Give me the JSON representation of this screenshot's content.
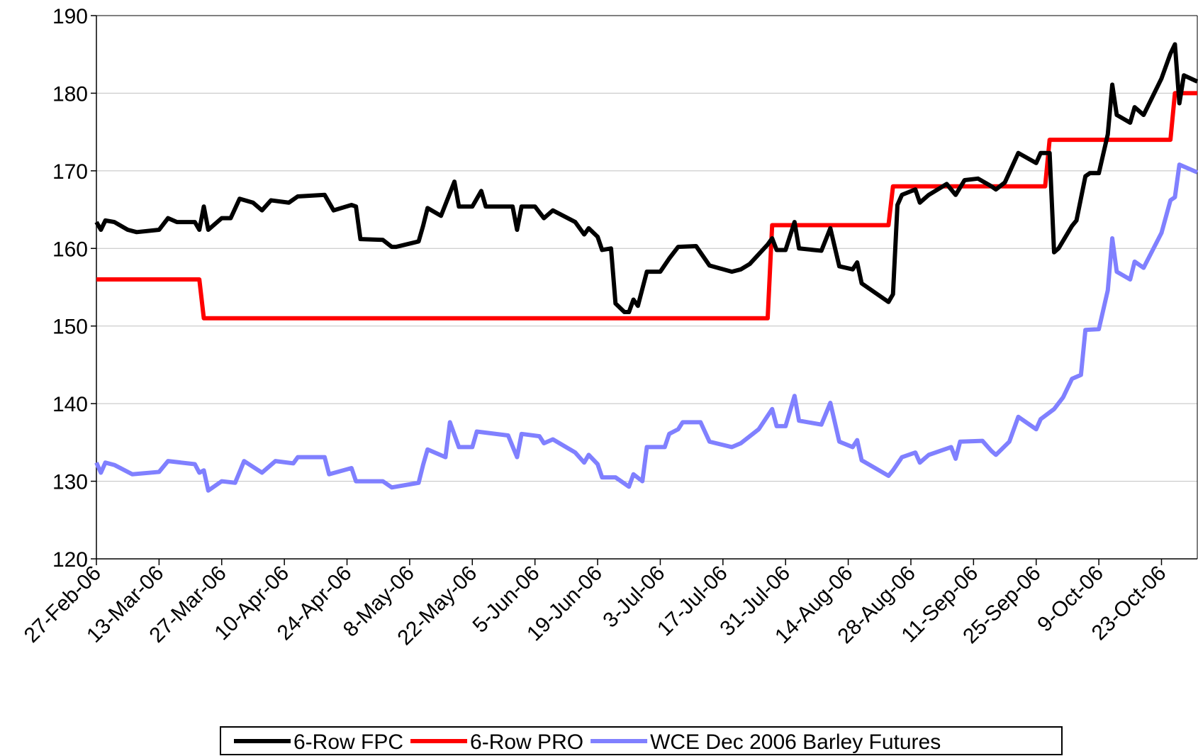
{
  "chart_data": {
    "type": "line",
    "xlim": [
      "2006-02-27",
      "2006-10-31"
    ],
    "xticks": [
      {
        "value": "2006-02-27",
        "label": "27-Feb-06"
      },
      {
        "value": "2006-03-13",
        "label": "13-Mar-06"
      },
      {
        "value": "2006-03-27",
        "label": "27-Mar-06"
      },
      {
        "value": "2006-04-10",
        "label": "10-Apr-06"
      },
      {
        "value": "2006-04-24",
        "label": "24-Apr-06"
      },
      {
        "value": "2006-05-08",
        "label": "8-May-06"
      },
      {
        "value": "2006-05-22",
        "label": "22-May-06"
      },
      {
        "value": "2006-06-05",
        "label": "5-Jun-06"
      },
      {
        "value": "2006-06-19",
        "label": "19-Jun-06"
      },
      {
        "value": "2006-07-03",
        "label": "3-Jul-06"
      },
      {
        "value": "2006-07-17",
        "label": "17-Jul-06"
      },
      {
        "value": "2006-07-31",
        "label": "31-Jul-06"
      },
      {
        "value": "2006-08-14",
        "label": "14-Aug-06"
      },
      {
        "value": "2006-08-28",
        "label": "28-Aug-06"
      },
      {
        "value": "2006-09-11",
        "label": "11-Sep-06"
      },
      {
        "value": "2006-09-25",
        "label": "25-Sep-06"
      },
      {
        "value": "2006-10-09",
        "label": "9-Oct-06"
      },
      {
        "value": "2006-10-23",
        "label": "23-Oct-06"
      }
    ],
    "ylim": [
      120,
      190
    ],
    "yticks": [
      120,
      130,
      140,
      150,
      160,
      170,
      180,
      190
    ],
    "grid": true,
    "legend": "bottom",
    "series": [
      {
        "name": "6-Row FPC",
        "color": "#000000",
        "x": [
          "2006-02-27",
          "2006-02-28",
          "2006-03-01",
          "2006-03-03",
          "2006-03-06",
          "2006-03-08",
          "2006-03-13",
          "2006-03-15",
          "2006-03-17",
          "2006-03-21",
          "2006-03-22",
          "2006-03-23",
          "2006-03-24",
          "2006-03-27",
          "2006-03-29",
          "2006-03-31",
          "2006-04-03",
          "2006-04-05",
          "2006-04-07",
          "2006-04-11",
          "2006-04-13",
          "2006-04-19",
          "2006-04-21",
          "2006-04-25",
          "2006-04-26",
          "2006-04-27",
          "2006-05-02",
          "2006-05-04",
          "2006-05-05",
          "2006-05-10",
          "2006-05-11",
          "2006-05-12",
          "2006-05-15",
          "2006-05-18",
          "2006-05-19",
          "2006-05-22",
          "2006-05-24",
          "2006-05-25",
          "2006-05-31",
          "2006-06-01",
          "2006-06-02",
          "2006-06-05",
          "2006-06-07",
          "2006-06-09",
          "2006-06-14",
          "2006-06-16",
          "2006-06-17",
          "2006-06-19",
          "2006-06-20",
          "2006-06-22",
          "2006-06-23",
          "2006-06-25",
          "2006-06-26",
          "2006-06-27",
          "2006-06-28",
          "2006-06-30",
          "2006-07-03",
          "2006-07-05",
          "2006-07-07",
          "2006-07-11",
          "2006-07-14",
          "2006-07-19",
          "2006-07-21",
          "2006-07-23",
          "2006-07-27",
          "2006-07-28",
          "2006-07-29",
          "2006-07-31",
          "2006-08-02",
          "2006-08-03",
          "2006-08-08",
          "2006-08-10",
          "2006-08-12",
          "2006-08-15",
          "2006-08-16",
          "2006-08-17",
          "2006-08-23",
          "2006-08-24",
          "2006-08-25",
          "2006-08-26",
          "2006-08-29",
          "2006-08-30",
          "2006-09-01",
          "2006-09-05",
          "2006-09-07",
          "2006-09-09",
          "2006-09-12",
          "2006-09-15",
          "2006-09-16",
          "2006-09-18",
          "2006-09-21",
          "2006-09-25",
          "2006-09-26",
          "2006-09-28",
          "2006-09-29",
          "2006-09-30",
          "2006-10-03",
          "2006-10-04",
          "2006-10-06",
          "2006-10-07",
          "2006-10-09",
          "2006-10-11",
          "2006-10-12",
          "2006-10-13",
          "2006-10-16",
          "2006-10-17",
          "2006-10-19",
          "2006-10-23",
          "2006-10-25",
          "2006-10-26",
          "2006-10-27",
          "2006-10-28",
          "2006-10-31"
        ],
        "values": [
          163.4,
          162.4,
          163.6,
          163.4,
          162.4,
          162.1,
          162.4,
          163.9,
          163.4,
          163.4,
          162.4,
          165.4,
          162.4,
          163.9,
          163.9,
          166.4,
          165.9,
          164.9,
          166.2,
          165.9,
          166.7,
          166.9,
          164.9,
          165.6,
          165.4,
          161.2,
          161.1,
          160.2,
          160.2,
          160.9,
          162.9,
          165.2,
          164.2,
          168.6,
          165.4,
          165.4,
          167.4,
          165.4,
          165.4,
          162.4,
          165.4,
          165.4,
          163.9,
          164.9,
          163.4,
          161.8,
          162.6,
          161.5,
          159.8,
          160.0,
          152.9,
          151.8,
          151.8,
          153.4,
          152.6,
          157.0,
          157.0,
          158.7,
          160.2,
          160.3,
          157.8,
          157.0,
          157.3,
          158.0,
          160.5,
          161.3,
          159.8,
          159.8,
          163.4,
          160.0,
          159.7,
          162.6,
          157.7,
          157.3,
          158.2,
          155.5,
          153.1,
          154.1,
          165.6,
          166.9,
          167.6,
          165.9,
          166.9,
          168.3,
          166.9,
          168.8,
          169.0,
          168.0,
          167.6,
          168.5,
          172.3,
          171.0,
          172.3,
          172.3,
          159.5,
          160.0,
          162.9,
          163.6,
          169.3,
          169.7,
          169.7,
          174.7,
          181.1,
          177.2,
          176.2,
          178.2,
          177.2,
          181.9,
          185.1,
          186.3,
          178.7,
          182.3,
          181.5
        ]
      },
      {
        "name": "6-Row PRO",
        "color": "#ff0000",
        "x": [
          "2006-02-27",
          "2006-03-22",
          "2006-03-23",
          "2006-07-27",
          "2006-07-28",
          "2006-08-23",
          "2006-08-24",
          "2006-09-27",
          "2006-09-28",
          "2006-10-25",
          "2006-10-26",
          "2006-10-31"
        ],
        "values": [
          156,
          156,
          151,
          151,
          163,
          163,
          168,
          168,
          174,
          174,
          180,
          180
        ]
      },
      {
        "name": "WCE Dec 2006 Barley Futures",
        "color": "#8080ff",
        "x": [
          "2006-02-27",
          "2006-02-28",
          "2006-03-01",
          "2006-03-03",
          "2006-03-07",
          "2006-03-13",
          "2006-03-15",
          "2006-03-21",
          "2006-03-22",
          "2006-03-23",
          "2006-03-24",
          "2006-03-27",
          "2006-03-30",
          "2006-04-01",
          "2006-04-05",
          "2006-04-08",
          "2006-04-12",
          "2006-04-13",
          "2006-04-19",
          "2006-04-20",
          "2006-04-25",
          "2006-04-26",
          "2006-05-02",
          "2006-05-04",
          "2006-05-10",
          "2006-05-11",
          "2006-05-12",
          "2006-05-16",
          "2006-05-17",
          "2006-05-19",
          "2006-05-22",
          "2006-05-23",
          "2006-05-30",
          "2006-06-01",
          "2006-06-02",
          "2006-06-06",
          "2006-06-07",
          "2006-06-09",
          "2006-06-14",
          "2006-06-16",
          "2006-06-17",
          "2006-06-19",
          "2006-06-20",
          "2006-06-23",
          "2006-06-26",
          "2006-06-27",
          "2006-06-29",
          "2006-06-30",
          "2006-07-04",
          "2006-07-05",
          "2006-07-07",
          "2006-07-08",
          "2006-07-12",
          "2006-07-14",
          "2006-07-19",
          "2006-07-21",
          "2006-07-25",
          "2006-07-28",
          "2006-07-29",
          "2006-07-31",
          "2006-08-02",
          "2006-08-03",
          "2006-08-08",
          "2006-08-10",
          "2006-08-12",
          "2006-08-15",
          "2006-08-16",
          "2006-08-17",
          "2006-08-23",
          "2006-08-24",
          "2006-08-26",
          "2006-08-29",
          "2006-08-30",
          "2006-09-01",
          "2006-09-06",
          "2006-09-07",
          "2006-09-08",
          "2006-09-13",
          "2006-09-15",
          "2006-09-16",
          "2006-09-19",
          "2006-09-21",
          "2006-09-25",
          "2006-09-26",
          "2006-09-29",
          "2006-10-01",
          "2006-10-03",
          "2006-10-05",
          "2006-10-06",
          "2006-10-09",
          "2006-10-11",
          "2006-10-12",
          "2006-10-13",
          "2006-10-16",
          "2006-10-17",
          "2006-10-19",
          "2006-10-23",
          "2006-10-25",
          "2006-10-26",
          "2006-10-27",
          "2006-10-31"
        ],
        "values": [
          132.4,
          131.1,
          132.4,
          132.1,
          130.9,
          131.2,
          132.6,
          132.2,
          131.1,
          131.4,
          128.8,
          130.0,
          129.8,
          132.6,
          131.1,
          132.6,
          132.3,
          133.1,
          133.1,
          130.9,
          131.7,
          130.0,
          130.0,
          129.2,
          129.8,
          132.1,
          134.1,
          133.1,
          137.6,
          134.4,
          134.4,
          136.4,
          135.9,
          133.1,
          136.1,
          135.8,
          134.9,
          135.4,
          133.7,
          132.4,
          133.4,
          132.2,
          130.5,
          130.5,
          129.3,
          130.9,
          130.0,
          134.4,
          134.4,
          136.1,
          136.7,
          137.6,
          137.6,
          135.1,
          134.4,
          134.9,
          136.7,
          139.3,
          137.1,
          137.1,
          141.0,
          137.8,
          137.3,
          140.1,
          135.1,
          134.4,
          135.3,
          132.7,
          130.7,
          131.4,
          133.1,
          133.7,
          132.4,
          133.4,
          134.4,
          132.9,
          135.1,
          135.2,
          133.9,
          133.4,
          135.1,
          138.3,
          136.7,
          138.0,
          139.3,
          140.8,
          143.2,
          143.7,
          149.5,
          149.6,
          154.6,
          161.3,
          157.0,
          156.0,
          158.3,
          157.5,
          162.0,
          166.2,
          166.6,
          170.8,
          169.8
        ]
      }
    ]
  }
}
